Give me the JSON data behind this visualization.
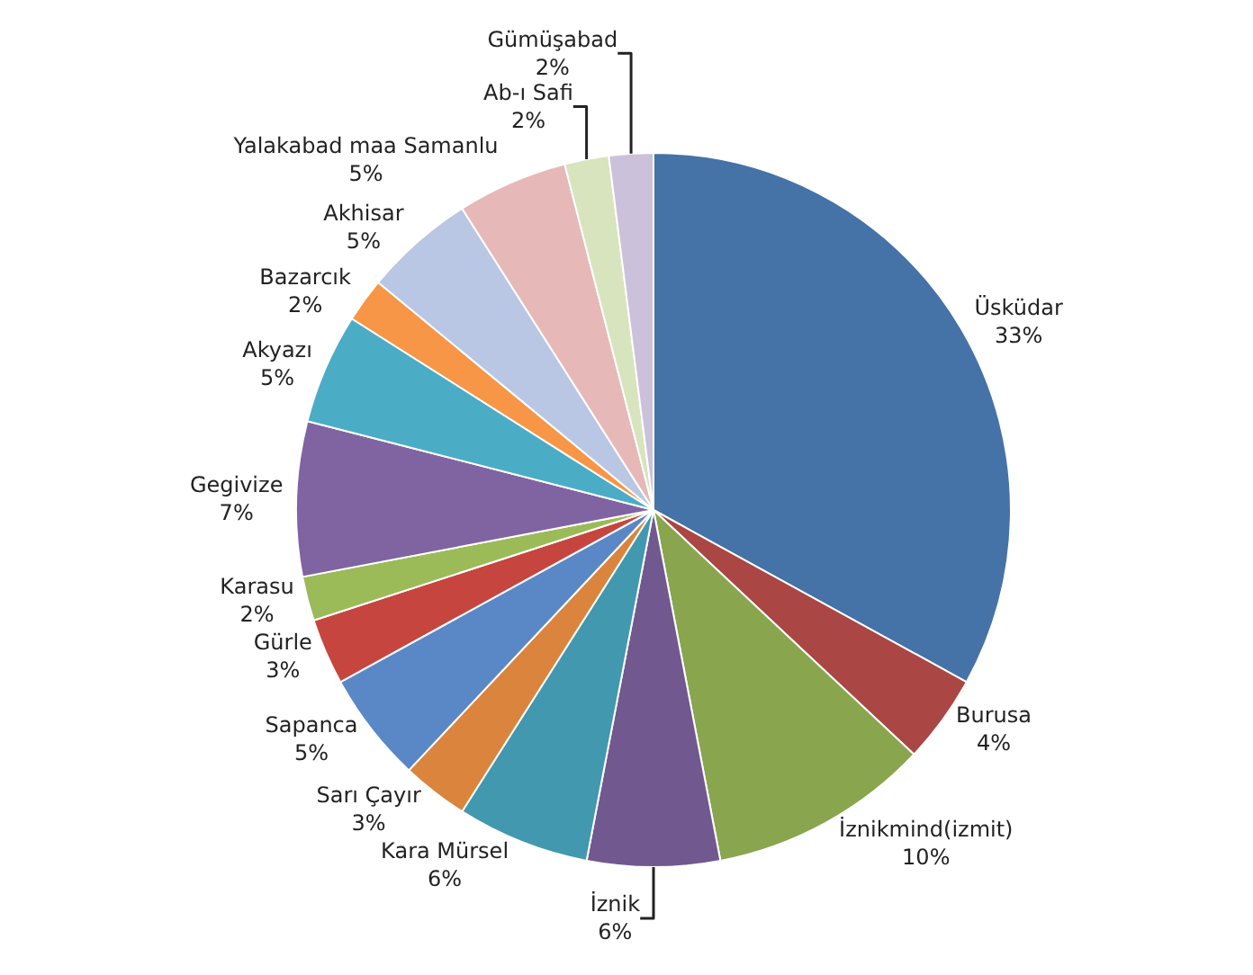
{
  "chart_data": {
    "type": "pie",
    "categories": [
      "Üsküdar",
      "Burusa",
      "İznikmind(izmit)",
      "İznik",
      "Kara Mürsel",
      "Sarı Çayır",
      "Sapanca",
      "Gürle",
      "Karasu",
      "Gegivize",
      "Akyazı",
      "Bazarcık",
      "Akhisar",
      "Yalakabad maa Samanlu",
      "Ab-ı Safi",
      "Gümüşabad"
    ],
    "values": [
      33,
      4,
      10,
      6,
      6,
      3,
      5,
      3,
      2,
      7,
      5,
      2,
      5,
      5,
      2,
      2
    ],
    "value_labels": [
      "33%",
      "4%",
      "10%",
      "6%",
      "6%",
      "3%",
      "5%",
      "3%",
      "2%",
      "7%",
      "5%",
      "2%",
      "5%",
      "5%",
      "2%",
      "2%"
    ],
    "colors": [
      "#4572a7",
      "#aa4643",
      "#89a54e",
      "#71588f",
      "#4198af",
      "#db843d",
      "#5a87c6",
      "#c6463f",
      "#9bbb59",
      "#8064a2",
      "#4bacc6",
      "#f79646",
      "#b9c7e4",
      "#e6b9b8",
      "#d7e4bd",
      "#ccc1da"
    ],
    "legend": false
  }
}
